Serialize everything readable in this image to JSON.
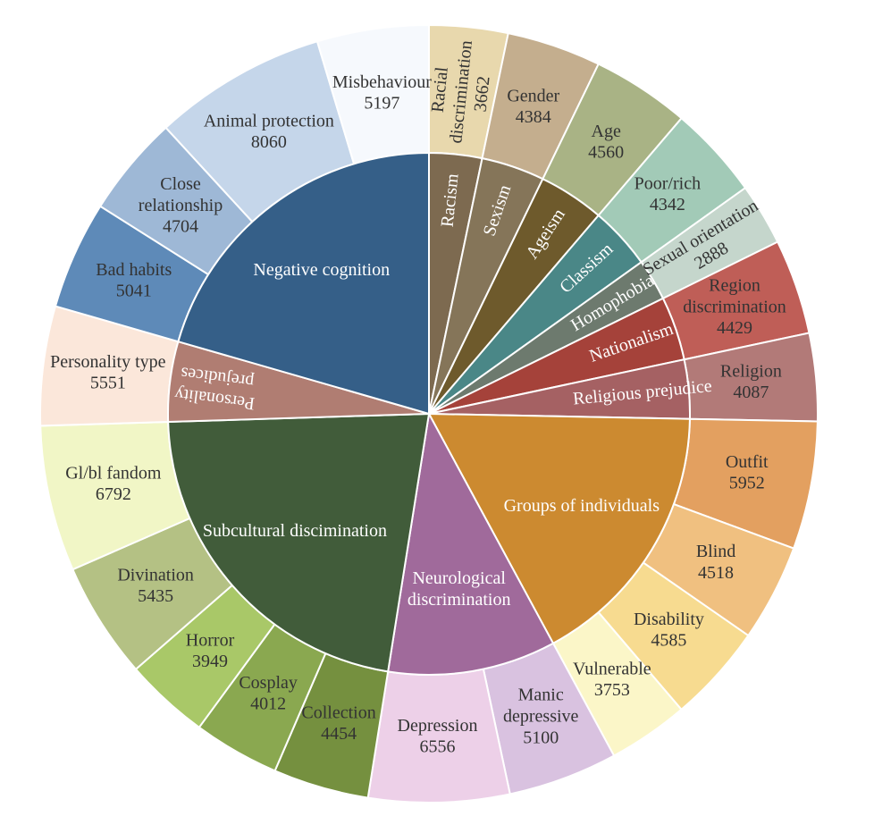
{
  "chart_data": {
    "type": "sunburst",
    "groups": [
      {
        "name": "Racism",
        "color": "#7d6a50",
        "children": [
          {
            "name": "Racial\ndiscrimination",
            "value": 3662,
            "color": "#e8d8ad"
          }
        ]
      },
      {
        "name": "Sexism",
        "color": "#857559",
        "children": [
          {
            "name": "Gender",
            "value": 4384,
            "color": "#c4ae8e"
          }
        ]
      },
      {
        "name": "Ageism",
        "color": "#6e5a2c",
        "children": [
          {
            "name": "Age",
            "value": 4560,
            "color": "#a9b385"
          }
        ]
      },
      {
        "name": "Classism",
        "color": "#4a8787",
        "children": [
          {
            "name": "Poor/rich",
            "value": 4342,
            "color": "#a2cab7"
          }
        ]
      },
      {
        "name": "Homophobia",
        "color": "#6d7a6e",
        "children": [
          {
            "name": "Sexual orientation",
            "value": 2888,
            "color": "#c5d6cc"
          }
        ]
      },
      {
        "name": "Nationalism",
        "color": "#a5423a",
        "children": [
          {
            "name": "Region\ndiscrimination",
            "value": 4429,
            "color": "#bf5e57"
          }
        ]
      },
      {
        "name": "Religious prejudice",
        "color": "#a56163",
        "children": [
          {
            "name": "Religion",
            "value": 4087,
            "color": "#b27a78"
          }
        ]
      },
      {
        "name": "Groups of individuals",
        "color": "#cc8a30",
        "children": [
          {
            "name": "Outfit",
            "value": 5952,
            "color": "#e3a060"
          },
          {
            "name": "Blind",
            "value": 4518,
            "color": "#f0c080"
          },
          {
            "name": "Disability",
            "value": 4585,
            "color": "#f7db90"
          },
          {
            "name": "Vulnerable",
            "value": 3753,
            "color": "#fbf6c8"
          }
        ]
      },
      {
        "name": "Neurological\ndiscrimination",
        "color": "#a06a9b",
        "children": [
          {
            "name": "Manic\ndepressive",
            "value": 5100,
            "color": "#d9c2e0"
          },
          {
            "name": "Depression",
            "value": 6556,
            "color": "#edd0e8"
          }
        ]
      },
      {
        "name": "Subcultural discimination",
        "color": "#415c3a",
        "children": [
          {
            "name": "Collection",
            "value": 4454,
            "color": "#75903f"
          },
          {
            "name": "Cosplay",
            "value": 4012,
            "color": "#8aa850"
          },
          {
            "name": "Horror",
            "value": 3949,
            "color": "#a9c868"
          },
          {
            "name": "Divination",
            "value": 5435,
            "color": "#b4c184"
          },
          {
            "name": "Gl/bl fandom",
            "value": 6792,
            "color": "#f1f6c6"
          }
        ]
      },
      {
        "name": "Personality\nprejudices",
        "color": "#b07d72",
        "children": [
          {
            "name": "Personality type",
            "value": 5551,
            "color": "#fbe7da"
          }
        ]
      },
      {
        "name": "Negative cognition",
        "color": "#355f88",
        "children": [
          {
            "name": "Bad habits",
            "value": 5041,
            "color": "#5e8ab8"
          },
          {
            "name": "Close\nrelationship",
            "value": 4704,
            "color": "#9eb8d6"
          },
          {
            "name": "Animal protection",
            "value": 8060,
            "color": "#c5d6ea"
          },
          {
            "name": "Misbehaviour",
            "value": 5197,
            "color": "#f6f9fd"
          }
        ]
      }
    ]
  }
}
